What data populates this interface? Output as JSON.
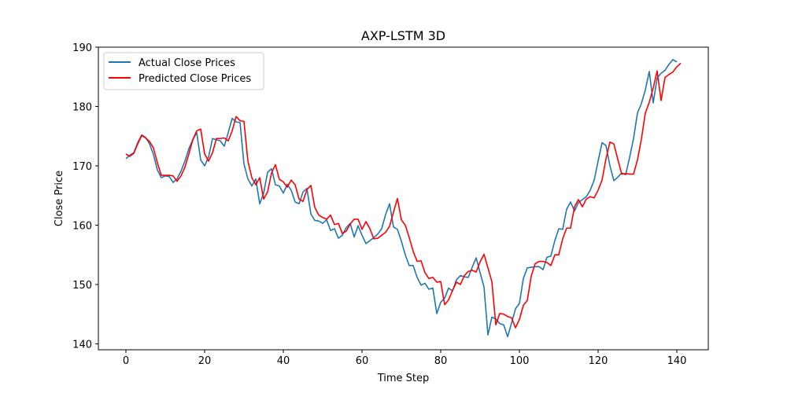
{
  "chart_data": {
    "type": "line",
    "title": "AXP-LSTM 3D",
    "xlabel": "Time Step",
    "ylabel": "Close Price",
    "xlim": [
      -7,
      148
    ],
    "ylim": [
      139,
      190
    ],
    "xticks": [
      0,
      20,
      40,
      60,
      80,
      100,
      120,
      140
    ],
    "yticks": [
      140,
      150,
      160,
      170,
      180,
      190
    ],
    "legend_position": "top-left",
    "grid": false,
    "series": [
      {
        "name": "Actual Close Prices",
        "color": "#1f77b4",
        "values": [
          171.2,
          171.8,
          172.2,
          173.9,
          175.2,
          174.8,
          173.7,
          171.9,
          169.3,
          168.0,
          168.3,
          168.2,
          167.2,
          167.8,
          169.1,
          170.8,
          172.9,
          174.4,
          175.6,
          171.0,
          170.0,
          171.5,
          174.6,
          174.4,
          174.2,
          173.3,
          175.6,
          178.0,
          177.4,
          177.3,
          170.3,
          167.8,
          166.6,
          167.8,
          163.6,
          165.4,
          168.9,
          169.5,
          166.8,
          166.6,
          165.4,
          166.9,
          165.9,
          163.9,
          163.6,
          165.6,
          166.2,
          161.9,
          160.8,
          160.7,
          160.3,
          160.9,
          159.1,
          159.4,
          157.8,
          158.3,
          159.6,
          160.3,
          158.0,
          159.9,
          158.3,
          156.9,
          157.4,
          157.9,
          158.5,
          159.4,
          161.8,
          163.6,
          159.7,
          159.3,
          157.3,
          155.0,
          153.2,
          153.2,
          151.2,
          149.9,
          150.2,
          149.2,
          149.4,
          145.1,
          147.0,
          147.7,
          149.4,
          148.9,
          150.8,
          151.5,
          151.3,
          151.2,
          152.9,
          154.5,
          152.0,
          149.6,
          141.5,
          144.5,
          144.2,
          143.4,
          143.2,
          141.2,
          143.5,
          145.9,
          146.8,
          151.0,
          152.8,
          152.9,
          153.0,
          153.0,
          152.5,
          154.6,
          154.8,
          157.4,
          159.4,
          159.3,
          162.7,
          163.9,
          162.4,
          163.8,
          164.3,
          164.8,
          165.9,
          167.6,
          170.8,
          173.9,
          173.4,
          170.0,
          167.5,
          168.1,
          168.8,
          168.5,
          171.4,
          174.6,
          178.9,
          180.5,
          182.8,
          185.9,
          180.6,
          184.8,
          185.6,
          186.1,
          187.1,
          187.9,
          187.5
        ]
      },
      {
        "name": "Predicted Close Prices",
        "color": "#ff0000",
        "values": [
          172.0,
          171.6,
          172.1,
          173.7,
          175.1,
          174.7,
          174.1,
          173.0,
          170.5,
          168.4,
          168.4,
          168.4,
          168.3,
          167.4,
          168.3,
          169.8,
          172.0,
          174.4,
          175.9,
          176.2,
          172.0,
          170.8,
          172.2,
          174.6,
          174.6,
          174.7,
          174.2,
          175.9,
          178.3,
          177.6,
          177.5,
          170.8,
          168.0,
          166.8,
          168.0,
          164.4,
          165.6,
          168.8,
          170.2,
          167.7,
          167.3,
          166.4,
          167.6,
          166.8,
          164.4,
          164.0,
          166.0,
          166.7,
          163.0,
          161.7,
          161.3,
          161.0,
          161.7,
          160.1,
          160.3,
          158.6,
          159.0,
          160.2,
          161.0,
          161.0,
          159.3,
          160.6,
          159.4,
          157.7,
          157.8,
          158.3,
          158.8,
          159.8,
          162.2,
          164.5,
          160.9,
          160.0,
          157.9,
          155.6,
          153.9,
          154.0,
          152.0,
          151.0,
          151.2,
          150.4,
          150.5,
          146.6,
          147.4,
          149.0,
          150.4,
          150.0,
          151.5,
          152.2,
          152.4,
          152.1,
          153.8,
          155.1,
          152.8,
          150.5,
          143.2,
          145.1,
          145.0,
          144.6,
          144.4,
          142.7,
          144.1,
          146.5,
          147.3,
          151.4,
          153.5,
          153.9,
          153.9,
          153.7,
          153.2,
          155.0,
          155.0,
          157.7,
          159.5,
          159.5,
          163.1,
          164.3,
          163.1,
          164.4,
          164.8,
          164.6,
          165.9,
          167.6,
          171.2,
          174.0,
          173.7,
          171.1,
          168.6,
          168.7,
          168.6,
          168.6,
          171.0,
          174.5,
          178.9,
          180.7,
          183.1,
          186.0,
          181.0,
          184.9,
          185.4,
          185.8,
          186.7,
          187.3
        ]
      }
    ]
  }
}
